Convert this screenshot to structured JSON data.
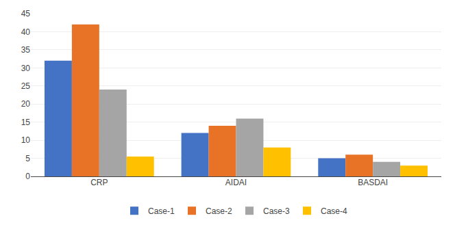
{
  "chart_data": {
    "type": "bar",
    "categories": [
      "CRP",
      "AIDAI",
      "BASDAI"
    ],
    "series": [
      {
        "name": "Case-1",
        "color": "#4472C4",
        "values": [
          32,
          12,
          5
        ]
      },
      {
        "name": "Case-2",
        "color": "#E87226",
        "values": [
          42,
          14,
          6
        ]
      },
      {
        "name": "Case-3",
        "color": "#A5A5A5",
        "values": [
          24,
          16,
          4
        ]
      },
      {
        "name": "Case-4",
        "color": "#FFC000",
        "values": [
          5.5,
          8,
          3
        ]
      }
    ],
    "ylim": [
      0,
      45
    ],
    "yticks": [
      0,
      5,
      10,
      15,
      20,
      25,
      30,
      35,
      40,
      45
    ],
    "grid": true,
    "legend": "bottom"
  }
}
